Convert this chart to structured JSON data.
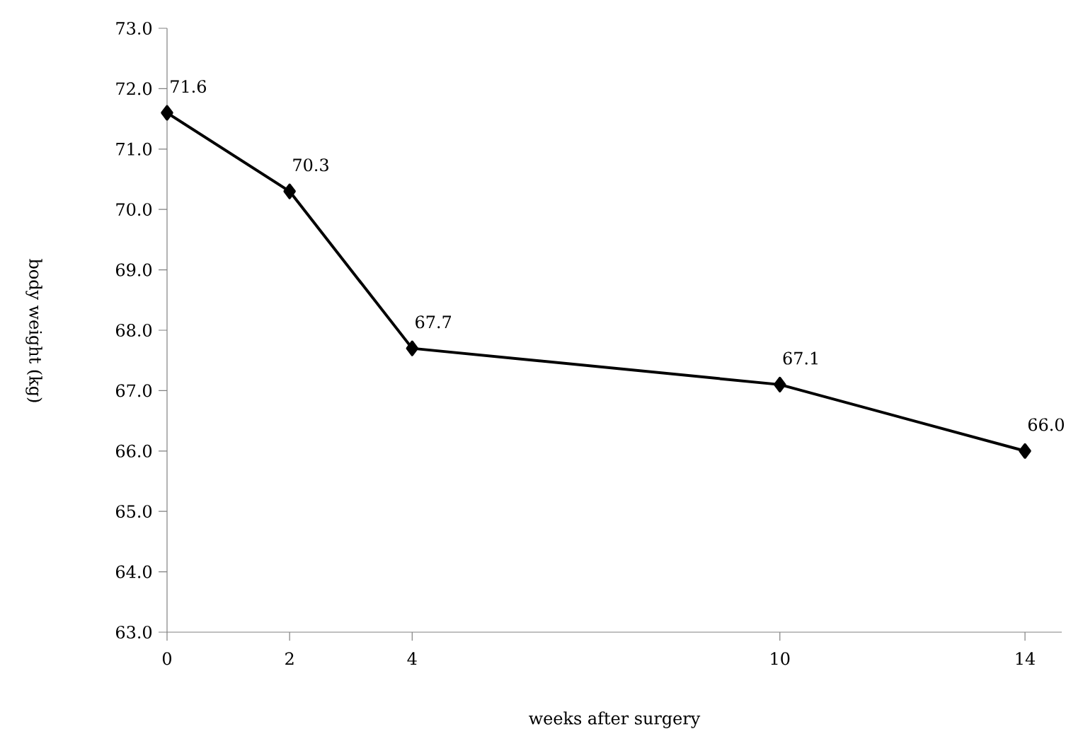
{
  "chart_data": {
    "type": "line",
    "xlabel": "weeks after surgery",
    "ylabel": "body weight  (kg)",
    "x": [
      0,
      2,
      4,
      10,
      14
    ],
    "series": [
      {
        "color": "#000000",
        "values": [
          71.6,
          70.3,
          67.7,
          67.1,
          66.0
        ],
        "value_labels": [
          "71.6",
          "70.3",
          "67.7",
          "67.1",
          "66.0"
        ]
      }
    ],
    "xlim": [
      0,
      14.6
    ],
    "xticks": [
      0,
      2,
      4,
      10,
      14
    ],
    "ylim": [
      63,
      73
    ],
    "yticks": [
      {
        "value": 63,
        "label": "63.0"
      },
      {
        "value": 64,
        "label": "64.0"
      },
      {
        "value": 65,
        "label": "65.0"
      },
      {
        "value": 66,
        "label": "66.0"
      },
      {
        "value": 67,
        "label": "67.0"
      },
      {
        "value": 68,
        "label": "68.0"
      },
      {
        "value": 69,
        "label": "69.0"
      },
      {
        "value": 70,
        "label": "70.0"
      },
      {
        "value": 71,
        "label": "71.0"
      },
      {
        "value": 72,
        "label": "72.0"
      },
      {
        "value": 73,
        "label": "73.0"
      }
    ],
    "marker": "diamond",
    "line_style": "solid",
    "grid": false
  }
}
